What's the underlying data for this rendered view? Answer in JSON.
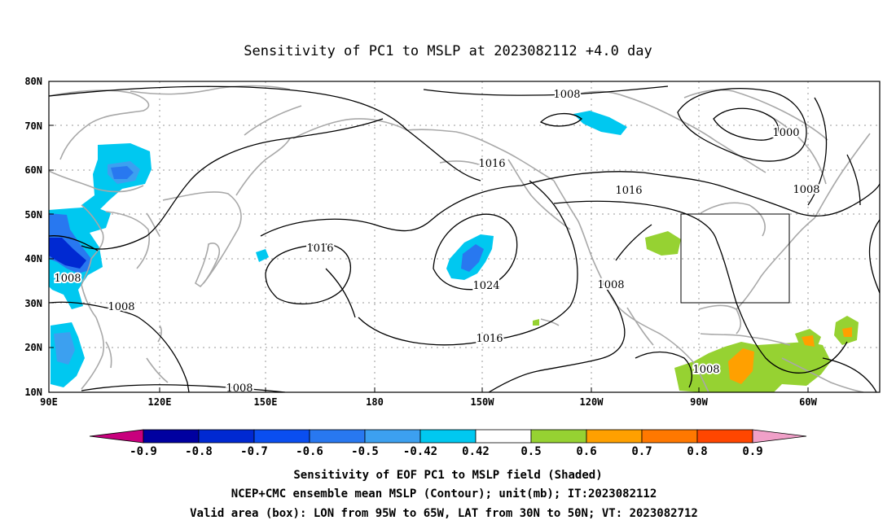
{
  "title": "Sensitivity of PC1 to MSLP at 2023082112 +4.0 day",
  "map": {
    "lat_ticks": [
      "80N",
      "70N",
      "60N",
      "50N",
      "40N",
      "30N",
      "20N",
      "10N"
    ],
    "lon_ticks": [
      "90E",
      "120E",
      "150E",
      "180",
      "150W",
      "120W",
      "90W",
      "60W"
    ],
    "contour_labels": [
      {
        "id": "c1",
        "text": "1008"
      },
      {
        "id": "c2",
        "text": "1000"
      },
      {
        "id": "c3",
        "text": "1016"
      },
      {
        "id": "c4",
        "text": "1016"
      },
      {
        "id": "c5",
        "text": "1008"
      },
      {
        "id": "c6",
        "text": "1016"
      },
      {
        "id": "c7",
        "text": "1024"
      },
      {
        "id": "c8",
        "text": "1008"
      },
      {
        "id": "c9",
        "text": "1008"
      },
      {
        "id": "c10",
        "text": "1008"
      },
      {
        "id": "c11",
        "text": "1016"
      },
      {
        "id": "c12",
        "text": "1008"
      },
      {
        "id": "c13",
        "text": "1008"
      }
    ],
    "valid_box": {
      "lon_from": "95W",
      "lon_to": "65W",
      "lat_from": "30N",
      "lat_to": "50N"
    }
  },
  "colorbar": {
    "colors": [
      "#c8007d",
      "#0000a0",
      "#0029d2",
      "#0a4ef0",
      "#2878f0",
      "#3ca0f0",
      "#00c8f0",
      "#ffffff",
      "#96d232",
      "#ffa000",
      "#ff7800",
      "#ff4600",
      "#ff0000",
      "#f0a0c8"
    ],
    "labels": [
      "-0.9",
      "-0.8",
      "-0.7",
      "-0.6",
      "-0.5",
      "-0.42",
      "0.42",
      "0.5",
      "0.6",
      "0.7",
      "0.8",
      "0.9"
    ]
  },
  "caption": {
    "line1": "Sensitivity of EOF PC1 to MSLP field (Shaded)",
    "line2": "NCEP+CMC ensemble mean MSLP (Contour); unit(mb); IT:2023082112",
    "line3": "Valid area (box): LON from 95W to 65W, LAT from 30N to 50N; VT: 2023082712"
  }
}
